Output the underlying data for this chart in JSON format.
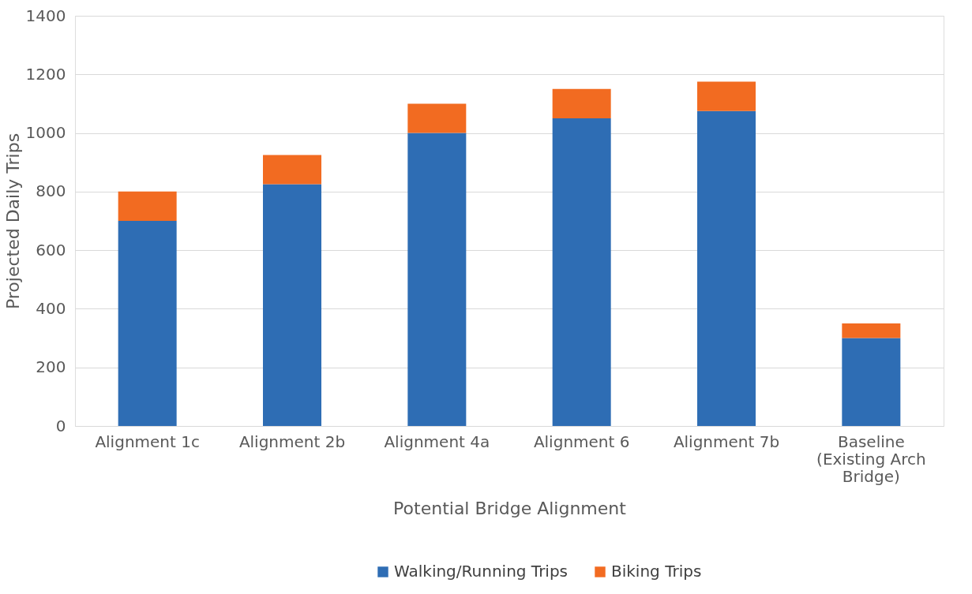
{
  "chart_data": {
    "type": "bar",
    "stacked": true,
    "xlabel": "Potential Bridge Alignment",
    "ylabel": "Projected Daily Trips",
    "categories": [
      "Alignment 1c",
      "Alignment 2b",
      "Alignment 4a",
      "Alignment 6",
      "Alignment 7b",
      "Baseline (Existing Arch Bridge)"
    ],
    "series": [
      {
        "name": "Walking/Running Trips",
        "color": "#2e6db4",
        "values": [
          700,
          825,
          1000,
          1050,
          1075,
          300
        ]
      },
      {
        "name": "Biking Trips",
        "color": "#f26b21",
        "values": [
          100,
          100,
          100,
          100,
          100,
          50
        ]
      }
    ],
    "ylim": [
      0,
      1400
    ],
    "yticks": [
      0,
      200,
      400,
      600,
      800,
      1000,
      1200,
      1400
    ],
    "grid": "y",
    "legend": "bottom"
  }
}
